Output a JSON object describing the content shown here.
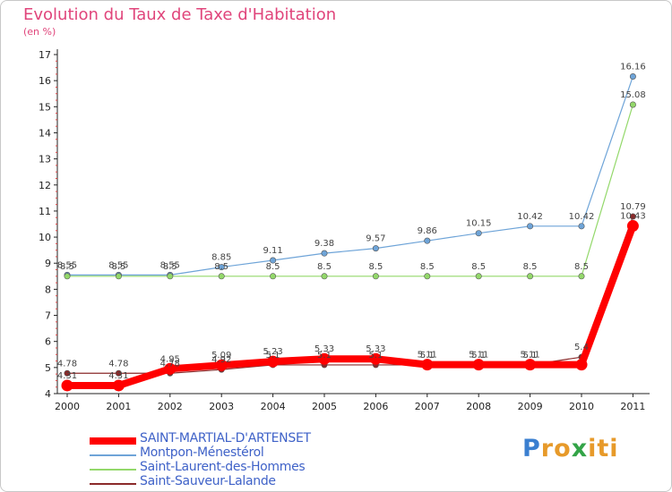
{
  "chart_data": {
    "type": "line",
    "title": "Evolution du Taux de Taxe d'Habitation",
    "subtitle": "(en %)",
    "x": [
      "2000",
      "2001",
      "2002",
      "2003",
      "2004",
      "2005",
      "2006",
      "2007",
      "2008",
      "2009",
      "2010",
      "2011"
    ],
    "ylim": [
      4,
      17
    ],
    "yticks": [
      "4",
      "5",
      "6",
      "7",
      "8",
      "9",
      "10",
      "11",
      "12",
      "13",
      "14",
      "15",
      "16",
      "17"
    ],
    "grid": false,
    "legend_position": "bottom-left",
    "series": [
      {
        "name": "SAINT-MARTIAL-D'ARTENSET",
        "color": "#ff0000",
        "values": [
          4.31,
          4.31,
          4.95,
          5.09,
          5.23,
          5.33,
          5.33,
          5.11,
          5.11,
          5.11,
          5.11,
          10.43
        ],
        "labels": [
          "4.31",
          "4.31",
          "4.95",
          "5.09",
          "5.23",
          "5.33",
          "5.33",
          "5.11",
          "5.11",
          "5.11",
          "",
          "10.43"
        ]
      },
      {
        "name": "Montpon-Ménestérol",
        "color": "#6ea4d8",
        "values": [
          8.55,
          8.55,
          8.55,
          8.85,
          9.11,
          9.38,
          9.57,
          9.86,
          10.15,
          10.42,
          10.42,
          16.16
        ],
        "labels": [
          "8.55",
          "8.55",
          "8.55",
          "8.85",
          "9.11",
          "9.38",
          "9.57",
          "9.86",
          "10.15",
          "10.42",
          "10.42",
          "16.16"
        ]
      },
      {
        "name": "Saint-Laurent-des-Hommes",
        "color": "#93d86a",
        "values": [
          8.5,
          8.5,
          8.5,
          8.5,
          8.5,
          8.5,
          8.5,
          8.5,
          8.5,
          8.5,
          8.5,
          15.08
        ],
        "labels": [
          "8.5",
          "8.5",
          "8.5",
          "8.5",
          "8.5",
          "8.5",
          "8.5",
          "8.5",
          "8.5",
          "8.5",
          "8.5",
          "15.08"
        ]
      },
      {
        "name": "Saint-Sauveur-Lalande",
        "color": "#8b2a2a",
        "values": [
          4.78,
          4.78,
          4.78,
          4.92,
          5.1,
          5.1,
          5.1,
          5.1,
          5.1,
          5.1,
          5.4,
          10.79
        ],
        "labels": [
          "4.78",
          "4.78",
          "4.78",
          "4.92",
          "5.1",
          "5.1",
          "5.1",
          "5.1",
          "5.1",
          "5.1",
          "5.4",
          "10.79"
        ]
      }
    ]
  },
  "brand": {
    "letters": [
      "P",
      "r",
      "o",
      "x",
      "i",
      "t",
      "i"
    ],
    "colors": [
      "#3a7fd0",
      "#e79a2a",
      "#e79a2a",
      "#33a447",
      "#e79a2a",
      "#e79a2a",
      "#e79a2a"
    ]
  }
}
